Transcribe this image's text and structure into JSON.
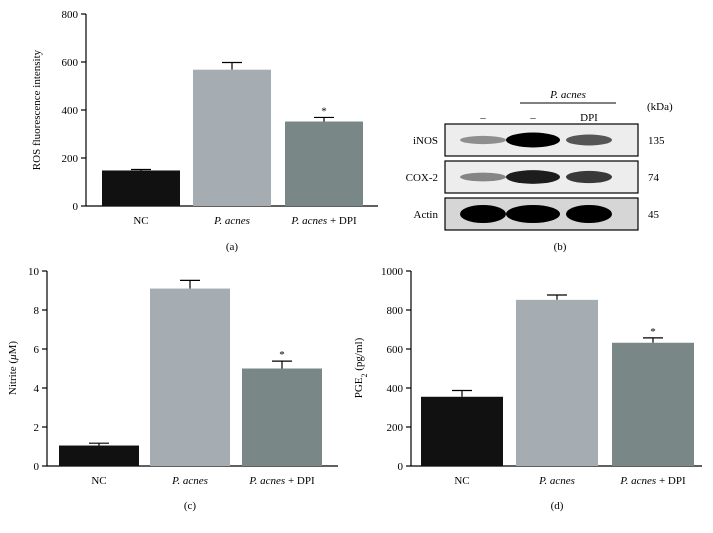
{
  "chart_data": [
    {
      "id": "a",
      "type": "bar",
      "panel_label": "(a)",
      "categories": [
        "NC",
        "P. acnes",
        "P. acnes + DPI"
      ],
      "category_styles": [
        {
          "italic": "",
          "plain": "NC"
        },
        {
          "italic": "P. acnes",
          "plain": ""
        },
        {
          "italic": "P. acnes",
          "plain": " + DPI"
        }
      ],
      "values": [
        148,
        568,
        352
      ],
      "errors": [
        4,
        30,
        17
      ],
      "significance": [
        "",
        "",
        "*"
      ],
      "colors": [
        "#111111",
        "#a6adb2",
        "#7a8787"
      ],
      "ylabel": "ROS fluorescence intensity",
      "ylabel_parts": {
        "pre": "ROS fluorescence intensity",
        "sub": "",
        "post": ""
      },
      "ylim": [
        0,
        800
      ],
      "yticks": [
        0,
        200,
        400,
        600,
        800
      ]
    },
    {
      "id": "c",
      "type": "bar",
      "panel_label": "(c)",
      "categories": [
        "NC",
        "P. acnes",
        "P. acnes + DPI"
      ],
      "category_styles": [
        {
          "italic": "",
          "plain": "NC"
        },
        {
          "italic": "P. acnes",
          "plain": ""
        },
        {
          "italic": "P. acnes",
          "plain": " + DPI"
        }
      ],
      "values": [
        1.05,
        9.1,
        5.0
      ],
      "errors": [
        0.12,
        0.42,
        0.38
      ],
      "significance": [
        "",
        "",
        "*"
      ],
      "colors": [
        "#111111",
        "#a6adb2",
        "#7a8787"
      ],
      "ylabel": "Nitrite (μM)",
      "ylabel_parts": {
        "pre": "Nitrite (",
        "italic": "μ",
        "post": "M)"
      },
      "ylim": [
        0,
        10
      ],
      "yticks": [
        0,
        2,
        4,
        6,
        8,
        10
      ]
    },
    {
      "id": "d",
      "type": "bar",
      "panel_label": "(d)",
      "categories": [
        "NC",
        "P. acnes",
        "P. acnes + DPI"
      ],
      "category_styles": [
        {
          "italic": "",
          "plain": "NC"
        },
        {
          "italic": "P. acnes",
          "plain": ""
        },
        {
          "italic": "P. acnes",
          "plain": " + DPI"
        }
      ],
      "values": [
        355,
        852,
        632
      ],
      "errors": [
        32,
        25,
        25
      ],
      "significance": [
        "",
        "",
        "*"
      ],
      "colors": [
        "#111111",
        "#a6adb2",
        "#7a8787"
      ],
      "ylabel": "PGE2 (pg/ml)",
      "ylabel_parts": {
        "pre": "PGE",
        "sub": "2",
        "post": " (pg/ml)"
      },
      "ylim": [
        0,
        1000
      ],
      "yticks": [
        0,
        200,
        400,
        600,
        800,
        1000
      ]
    }
  ],
  "western_blot": {
    "panel_label": "(b)",
    "group_label": "P. acnes",
    "unit_label": "(kDa)",
    "lane_labels": [
      "–",
      "–",
      "DPI"
    ],
    "rows": [
      {
        "name": "iNOS",
        "kda": "135",
        "intensity": [
          0.25,
          1.0,
          0.55
        ]
      },
      {
        "name": "COX-2",
        "kda": "74",
        "intensity": [
          0.3,
          0.85,
          0.7
        ]
      },
      {
        "name": "Actin",
        "kda": "45",
        "intensity": [
          1.0,
          1.0,
          1.0
        ]
      }
    ]
  }
}
